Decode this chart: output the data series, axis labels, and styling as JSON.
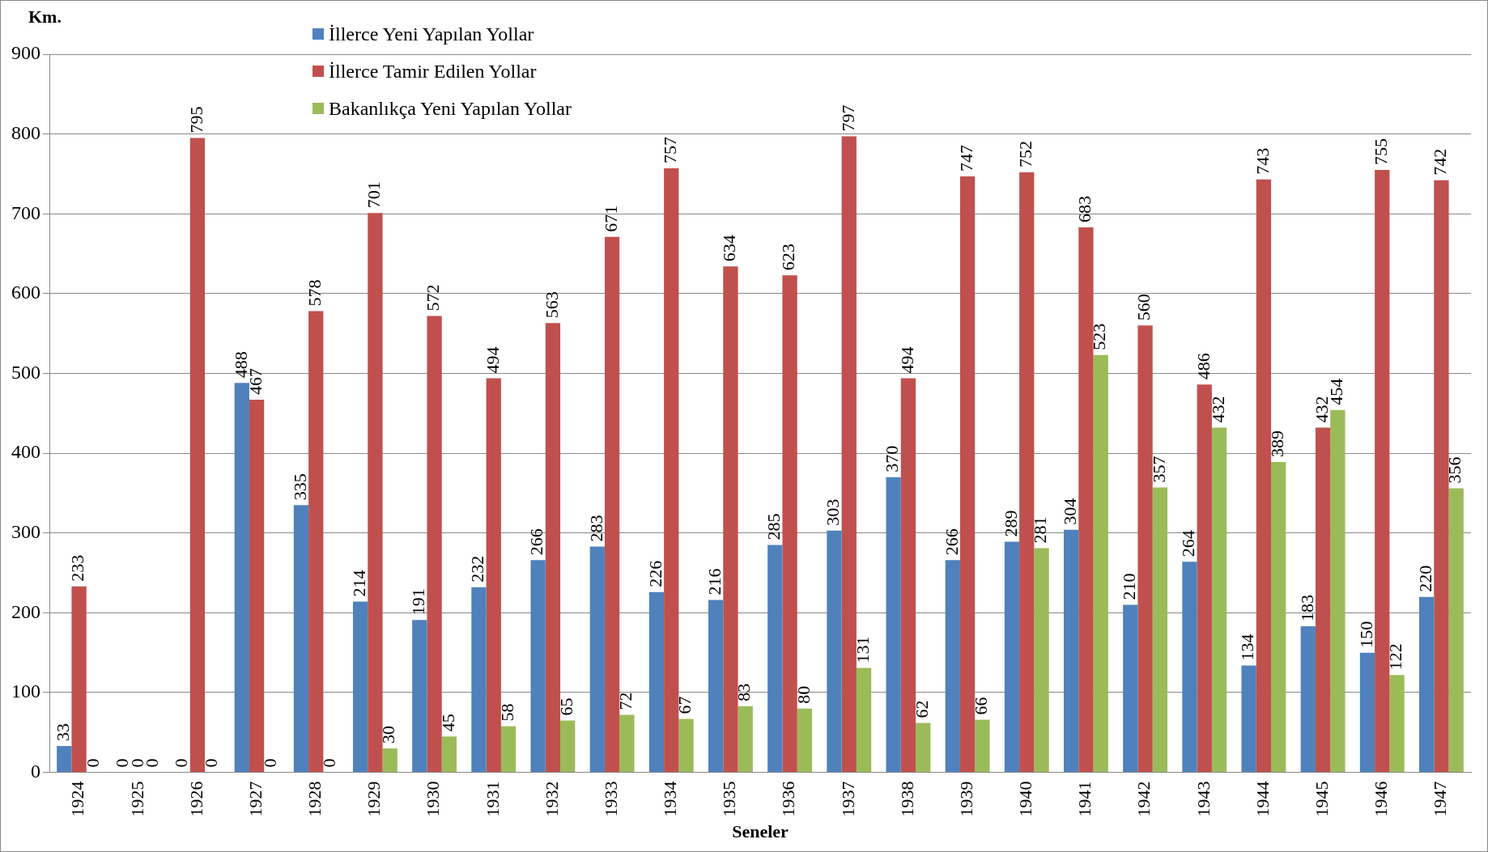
{
  "chart_data": {
    "type": "bar",
    "xlabel": "Seneler",
    "ylabel": "Km.",
    "categories": [
      "1924",
      "1925",
      "1926",
      "1927",
      "1928",
      "1929",
      "1930",
      "1931",
      "1932",
      "1933",
      "1934",
      "1935",
      "1936",
      "1937",
      "1938",
      "1939",
      "1940",
      "1941",
      "1942",
      "1943",
      "1944",
      "1945",
      "1946",
      "1947"
    ],
    "series": [
      {
        "name": "İllerce Yeni Yapılan Yollar",
        "color": "#4f81bd",
        "values": [
          33,
          0,
          0,
          488,
          335,
          214,
          191,
          232,
          266,
          283,
          226,
          216,
          285,
          303,
          370,
          266,
          289,
          304,
          210,
          264,
          134,
          183,
          150,
          220
        ]
      },
      {
        "name": "İllerce Tamir Edilen Yollar",
        "color": "#c0504d",
        "values": [
          233,
          0,
          795,
          467,
          578,
          701,
          572,
          494,
          563,
          671,
          757,
          634,
          623,
          797,
          494,
          747,
          752,
          683,
          560,
          486,
          743,
          432,
          755,
          742
        ]
      },
      {
        "name": "Bakanlıkça Yeni Yapılan Yollar",
        "color": "#9bbb59",
        "values": [
          0,
          0,
          0,
          0,
          0,
          30,
          45,
          58,
          65,
          72,
          67,
          83,
          80,
          131,
          62,
          66,
          281,
          523,
          357,
          432,
          389,
          454,
          122,
          356
        ]
      }
    ],
    "ylim": [
      0,
      900
    ],
    "yticks": [
      0,
      100,
      200,
      300,
      400,
      500,
      600,
      700,
      800,
      900
    ],
    "grid": "y",
    "legend": "top left",
    "data_labels": true
  }
}
